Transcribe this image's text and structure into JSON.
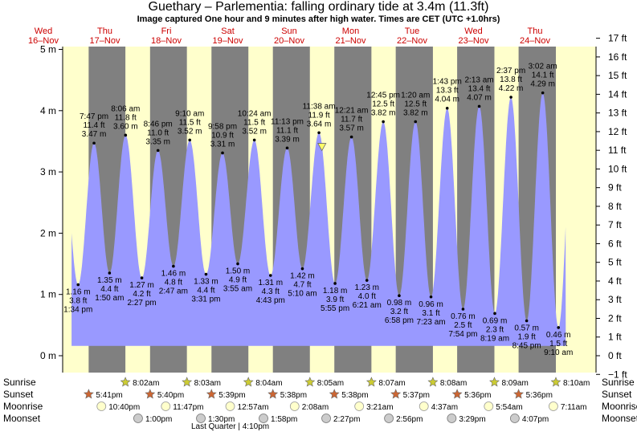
{
  "title": "Guethary – Parlementia: falling  ordinary tide at 3.4m (11.3ft)",
  "subtitle": "Image captured One hour and 9 minutes after high water. Times are CET (UTC +1.0hrs)",
  "colors": {
    "day": "#ffffcc",
    "night": "#808080",
    "tide": "#9999ff",
    "sunrise_star": "#cccc33",
    "sunset_star": "#cc6633",
    "moonrise": "#ffffcc",
    "moonset": "#cccccc",
    "marker": "#ffff66"
  },
  "chart_data": {
    "type": "area",
    "ylabel_left": "m",
    "ylabel_right": "ft",
    "ylim_m": [
      -0.3,
      5.3
    ],
    "y_ticks_m": [
      "0 m",
      "1 m",
      "2 m",
      "3 m",
      "4 m",
      "5 m"
    ],
    "y_ticks_ft": [
      "−1 ft",
      "0 ft",
      "1 ft",
      "2 ft",
      "3 ft",
      "4 ft",
      "5 ft",
      "6 ft",
      "7 ft",
      "8 ft",
      "9 ft",
      "10 ft",
      "11 ft",
      "12 ft",
      "13 ft",
      "14 ft",
      "15 ft",
      "16 ft",
      "17 ft"
    ],
    "xlim_days": [
      16,
      24.5
    ],
    "days": [
      {
        "dow": "Wed",
        "date": "16–Nov",
        "d": 16
      },
      {
        "dow": "Thu",
        "date": "17–Nov",
        "d": 17
      },
      {
        "dow": "Fri",
        "date": "18–Nov",
        "d": 18
      },
      {
        "dow": "Sat",
        "date": "19–Nov",
        "d": 19
      },
      {
        "dow": "Sun",
        "date": "20–Nov",
        "d": 20
      },
      {
        "dow": "Mon",
        "date": "21–Nov",
        "d": 21
      },
      {
        "dow": "Tue",
        "date": "22–Nov",
        "d": 22
      },
      {
        "dow": "Wed",
        "date": "23–Nov",
        "d": 23
      },
      {
        "dow": "Thu",
        "date": "24–Nov",
        "d": 24
      }
    ],
    "extremes": [
      {
        "type": "low",
        "d": 16,
        "time": "1:34 pm",
        "m": 1.16,
        "ft": "3.8 ft",
        "m_label": "1.16 m"
      },
      {
        "type": "high",
        "d": 16,
        "time": "7:47 pm",
        "m": 3.47,
        "ft": "11.4 ft",
        "m_label": "3.47 m"
      },
      {
        "type": "low",
        "d": 17,
        "time": "1:50 am",
        "m": 1.35,
        "ft": "4.4 ft",
        "m_label": "1.35 m"
      },
      {
        "type": "high",
        "d": 17,
        "time": "8:06 am",
        "m": 3.6,
        "ft": "11.8 ft",
        "m_label": "3.60 m"
      },
      {
        "type": "low",
        "d": 17,
        "time": "2:27 pm",
        "m": 1.27,
        "ft": "4.2 ft",
        "m_label": "1.27 m"
      },
      {
        "type": "high",
        "d": 17,
        "time": "8:46 pm",
        "m": 3.35,
        "ft": "11.0 ft",
        "m_label": "3.35 m"
      },
      {
        "type": "low",
        "d": 18,
        "time": "2:47 am",
        "m": 1.46,
        "ft": "4.8 ft",
        "m_label": "1.46 m"
      },
      {
        "type": "high",
        "d": 18,
        "time": "9:10 am",
        "m": 3.52,
        "ft": "11.5 ft",
        "m_label": "3.52 m"
      },
      {
        "type": "low",
        "d": 18,
        "time": "3:31 pm",
        "m": 1.33,
        "ft": "4.4 ft",
        "m_label": "1.33 m"
      },
      {
        "type": "high",
        "d": 18,
        "time": "9:58 pm",
        "m": 3.31,
        "ft": "10.9 ft",
        "m_label": "3.31 m"
      },
      {
        "type": "low",
        "d": 19,
        "time": "3:55 am",
        "m": 1.5,
        "ft": "4.9 ft",
        "m_label": "1.50 m"
      },
      {
        "type": "high",
        "d": 19,
        "time": "10:24 am",
        "m": 3.52,
        "ft": "11.5 ft",
        "m_label": "3.52 m"
      },
      {
        "type": "low",
        "d": 19,
        "time": "4:43 pm",
        "m": 1.31,
        "ft": "4.3 ft",
        "m_label": "1.31 m"
      },
      {
        "type": "high",
        "d": 19,
        "time": "11:13 pm",
        "m": 3.39,
        "ft": "11.1 ft",
        "m_label": "3.39 m"
      },
      {
        "type": "low",
        "d": 20,
        "time": "5:10 am",
        "m": 1.42,
        "ft": "4.7 ft",
        "m_label": "1.42 m"
      },
      {
        "type": "high",
        "d": 20,
        "time": "11:38 am",
        "m": 3.64,
        "ft": "11.9 ft",
        "m_label": "3.64 m"
      },
      {
        "type": "low",
        "d": 20,
        "time": "5:55 pm",
        "m": 1.18,
        "ft": "3.9 ft",
        "m_label": "1.18 m"
      },
      {
        "type": "low",
        "d": 21,
        "time": "6:21 am",
        "m": 1.23,
        "ft": "4.0 ft",
        "m_label": "1.23 m"
      },
      {
        "type": "high",
        "d": 21,
        "time": "12:21 am",
        "m": 3.57,
        "ft": "11.7 ft",
        "m_label": "3.57 m"
      },
      {
        "type": "high",
        "d": 21,
        "time": "12:45 pm",
        "m": 3.82,
        "ft": "12.5 ft",
        "m_label": "3.82 m"
      },
      {
        "type": "low",
        "d": 21,
        "time": "6:58 pm",
        "m": 0.98,
        "ft": "3.2 ft",
        "m_label": "0.98 m"
      },
      {
        "type": "high",
        "d": 22,
        "time": "1:20 am",
        "m": 3.82,
        "ft": "12.5 ft",
        "m_label": "3.82 m"
      },
      {
        "type": "low",
        "d": 22,
        "time": "7:23 am",
        "m": 0.96,
        "ft": "3.1 ft",
        "m_label": "0.96 m"
      },
      {
        "type": "high",
        "d": 22,
        "time": "1:43 pm",
        "m": 4.04,
        "ft": "13.3 ft",
        "m_label": "4.04 m"
      },
      {
        "type": "low",
        "d": 22,
        "time": "7:54 pm",
        "m": 0.76,
        "ft": "2.5 ft",
        "m_label": "0.76 m"
      },
      {
        "type": "high",
        "d": 23,
        "time": "2:13 am",
        "m": 4.07,
        "ft": "13.4 ft",
        "m_label": "4.07 m"
      },
      {
        "type": "low",
        "d": 23,
        "time": "8:19 am",
        "m": 0.69,
        "ft": "2.3 ft",
        "m_label": "0.69 m"
      },
      {
        "type": "high",
        "d": 23,
        "time": "2:37 pm",
        "m": 4.22,
        "ft": "13.8 ft",
        "m_label": "4.22 m"
      },
      {
        "type": "low",
        "d": 23,
        "time": "8:45 pm",
        "m": 0.57,
        "ft": "1.9 ft",
        "m_label": "0.57 m"
      },
      {
        "type": "high",
        "d": 24,
        "time": "3:02 am",
        "m": 4.29,
        "ft": "14.1 ft",
        "m_label": "4.29 m"
      },
      {
        "type": "low",
        "d": 24,
        "time": "9:10 am",
        "m": 0.46,
        "ft": "1.5 ft",
        "m_label": "0.46 m"
      }
    ],
    "current": {
      "d": 20,
      "time": "12:47",
      "m": 3.4
    },
    "series_range": {
      "start": "16 11:00",
      "end": "24 12:00"
    }
  },
  "rows": {
    "labels": [
      "Sunrise",
      "Sunset",
      "Moonrise",
      "Moonset"
    ],
    "sunrise": [
      {
        "d": 17,
        "time": "8:02am"
      },
      {
        "d": 18,
        "time": "8:03am"
      },
      {
        "d": 19,
        "time": "8:04am"
      },
      {
        "d": 20,
        "time": "8:05am"
      },
      {
        "d": 21,
        "time": "8:07am"
      },
      {
        "d": 22,
        "time": "8:08am"
      },
      {
        "d": 23,
        "time": "8:09am"
      },
      {
        "d": 24,
        "time": "8:10am"
      }
    ],
    "sunset": [
      {
        "d": 16,
        "time": "5:41pm"
      },
      {
        "d": 17,
        "time": "5:40pm"
      },
      {
        "d": 18,
        "time": "5:39pm"
      },
      {
        "d": 19,
        "time": "5:38pm"
      },
      {
        "d": 20,
        "time": "5:38pm"
      },
      {
        "d": 21,
        "time": "5:37pm"
      },
      {
        "d": 22,
        "time": "5:36pm"
      },
      {
        "d": 23,
        "time": "5:36pm"
      }
    ],
    "moonrise": [
      {
        "d": 16,
        "time": "10:40pm"
      },
      {
        "d": 17,
        "time": "11:47pm"
      },
      {
        "d": 19,
        "time": "12:57am"
      },
      {
        "d": 20,
        "time": "2:08am"
      },
      {
        "d": 21,
        "time": "3:21am"
      },
      {
        "d": 22,
        "time": "4:37am"
      },
      {
        "d": 23,
        "time": "5:54am"
      },
      {
        "d": 24,
        "time": "7:11am"
      }
    ],
    "moonset": [
      {
        "d": 17,
        "time": "1:00pm"
      },
      {
        "d": 18,
        "time": "1:30pm"
      },
      {
        "d": 19,
        "time": "1:58pm"
      },
      {
        "d": 20,
        "time": "2:27pm"
      },
      {
        "d": 21,
        "time": "2:56pm"
      },
      {
        "d": 22,
        "time": "3:29pm"
      },
      {
        "d": 23,
        "time": "4:07pm"
      }
    ],
    "moon_phase": {
      "d": 18,
      "time": "4:10pm",
      "label": "Last Quarter | 4:10pm"
    }
  }
}
